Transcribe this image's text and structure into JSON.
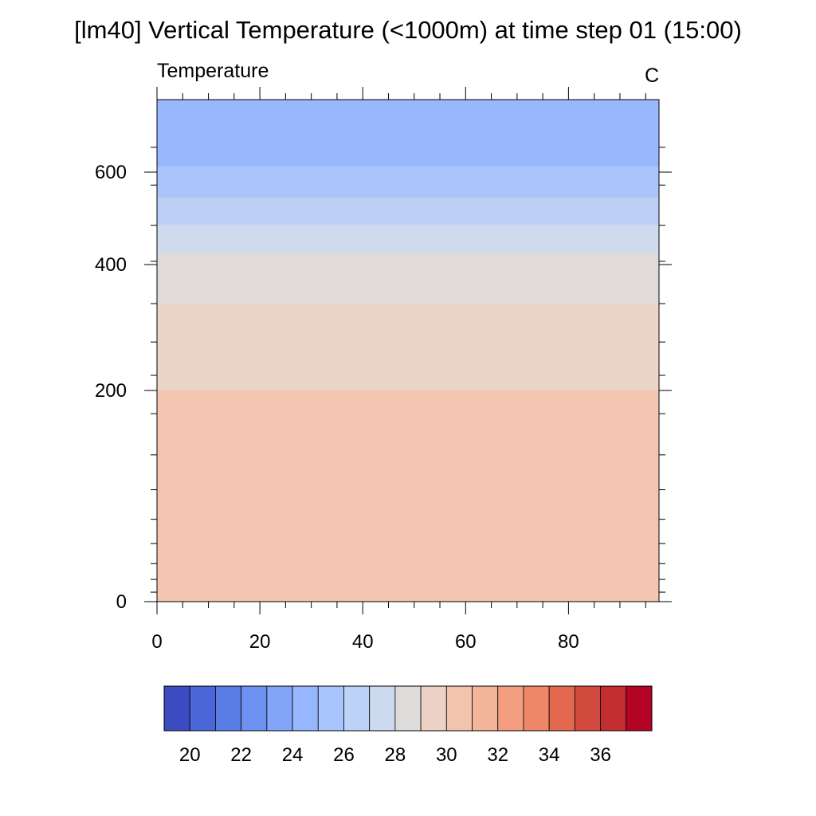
{
  "chart_data": {
    "type": "heatmap",
    "title": "[lm40] Vertical Temperature (<1000m) at time step 01 (15:00)",
    "left_label": "Temperature",
    "right_label": "C",
    "x": {
      "range": [
        0,
        97.6
      ],
      "major_ticks": [
        0,
        20,
        40,
        60,
        80
      ],
      "tick_labels": [
        "0",
        "20",
        "40",
        "60",
        "80"
      ],
      "minor_step": 5
    },
    "y": {
      "major_ticks": [
        0,
        200,
        400,
        600
      ],
      "tick_labels": [
        "0",
        "200",
        "400",
        "600"
      ],
      "level_heights": [
        0,
        9,
        21,
        36,
        55,
        78,
        106,
        139,
        178,
        224,
        277,
        338,
        407,
        485,
        572,
        669,
        776
      ]
    },
    "bands": [
      {
        "from": 0,
        "to": 200,
        "color": "#f2c6b0"
      },
      {
        "from": 200,
        "to": 338,
        "color": "#ecd4c6"
      },
      {
        "from": 338,
        "to": 425,
        "color": "#e0dbd9"
      },
      {
        "from": 425,
        "to": 485,
        "color": "#cfdaed"
      },
      {
        "from": 485,
        "to": 545,
        "color": "#bcd0f6"
      },
      {
        "from": 545,
        "to": 615,
        "color": "#aac5fb"
      },
      {
        "from": 615,
        "to": 680,
        "color": "#98b7fc"
      }
    ],
    "colorbar": {
      "colors": [
        "#3c4bc2",
        "#4a66d8",
        "#5b7de6",
        "#6e92f1",
        "#82a5f9",
        "#96b6fd",
        "#a9c5fd",
        "#bcd2f6",
        "#cdd9ec",
        "#dddcdb",
        "#ebd2c5",
        "#f2c4ad",
        "#f5b59a",
        "#f49d80",
        "#ee8668",
        "#e2684f",
        "#d34b3f",
        "#c22d30",
        "#b40426"
      ],
      "labels": [
        "20",
        "22",
        "24",
        "26",
        "28",
        "30",
        "32",
        "34",
        "36"
      ]
    }
  }
}
